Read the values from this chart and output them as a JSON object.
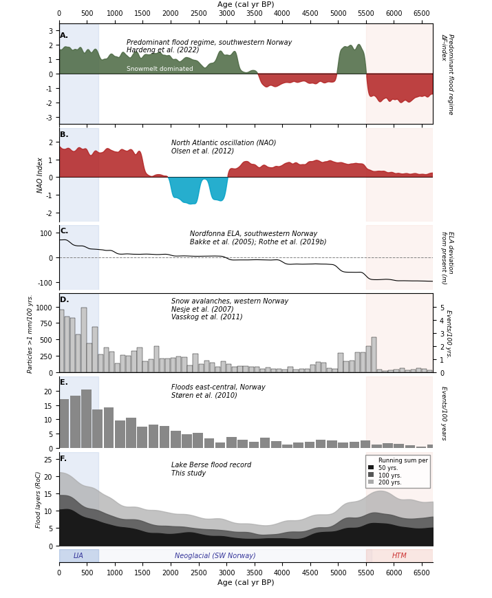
{
  "title_top": "Age (cal yr BP)",
  "title_bottom": "Age (cal yr BP)",
  "x_min": 0,
  "x_max": 6700,
  "x_ticks": [
    0,
    500,
    1000,
    1500,
    2000,
    2500,
    3000,
    3500,
    4000,
    4500,
    5000,
    5500,
    6000,
    6500
  ],
  "lia_region": [
    0,
    700
  ],
  "neoglacial_region": [
    0,
    5600
  ],
  "htm_region": [
    5700,
    6700
  ],
  "panel_labels": [
    "A.",
    "B.",
    "C.",
    "D.",
    "E.",
    "F."
  ],
  "bg_blue": [
    0,
    700
  ],
  "bg_pink": [
    5500,
    6700
  ],
  "panel_A_label": "Predominant flood regime, southwestern Norway\nHardeng et al. (2022)",
  "panel_B_label": "North Atlantic oscillation (NAO)\nOlsen et al. (2012)",
  "panel_C_label": "Nordfonna ELA, southwestern Norway\nBakke et al. (2005); Rothe et al. (2019b)",
  "panel_D_label": "Snow avalanches, western Norway\nNesje et al. (2007)\nVasskog et al. (2011)",
  "panel_E_label": "Floods east-central, Norway\nStøren et al. (2010)",
  "panel_F_label": "Lake Berse flood record\nThis study",
  "panel_A_ylabel": "Predominant flood regime\nΔF-index",
  "panel_B_ylabel": "NAO Index",
  "panel_C_ylabel": "ELA deviation\nfrom present (m)",
  "panel_D_ylabel": "Particles >1 mm/100 yrs.",
  "panel_D_ylabel2": "Events/100 yrs.",
  "panel_E_ylabel": "Events/100 years",
  "panel_F_ylabel": "Flood layers (RoC)",
  "snowmelt_color": "#4a6741",
  "rainfall_color": "#b22222",
  "nao_pos_color": "#b22222",
  "nao_neg_color": "#00a0c6",
  "ela_color": "#000000",
  "avalan_bar_color": "#c8c8c8",
  "avalan_line_color": "#000000",
  "flood_bar_color": "#888888",
  "flood50_color": "#1a1a1a",
  "flood100_color": "#555555",
  "flood200_color": "#aaaaaa",
  "legend_50": "50 yrs.",
  "legend_100": "100 yrs.",
  "legend_200": "200 yrs.",
  "bottom_labels": [
    "LIA",
    "Neoglacial (SW Norway)",
    "HTM"
  ]
}
